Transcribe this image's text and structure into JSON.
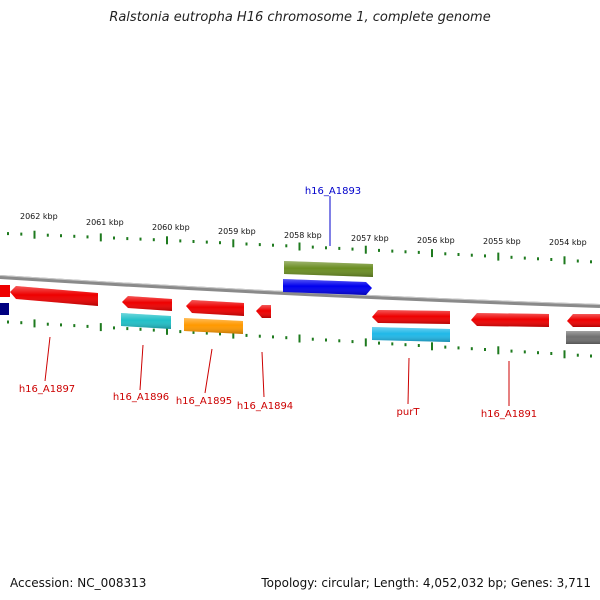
{
  "title": "Ralstonia eutropha H16 chromosome 1, complete genome",
  "accession": "Accession: NC_008313",
  "topology_info": "Topology: circular; Length: 4,052,032 bp; Genes: 3,711",
  "colors": {
    "backbone": "#8a8a8a",
    "tick": "#1e7a1e",
    "label_red": "#cc0000",
    "label_blue": "#0000cc"
  },
  "ruler": {
    "labels": [
      "2062 kbp",
      "2061 kbp",
      "2060 kbp",
      "2059 kbp",
      "2058 kbp",
      "2057 kbp",
      "2056 kbp",
      "2055 kbp",
      "2054 kbp"
    ]
  },
  "gene_labels": [
    {
      "id": "h16_A1897",
      "text": "h16_A1897",
      "color": "#cc0000"
    },
    {
      "id": "h16_A1896",
      "text": "h16_A1896",
      "color": "#cc0000"
    },
    {
      "id": "h16_A1895",
      "text": "h16_A1895",
      "color": "#cc0000"
    },
    {
      "id": "h16_A1894",
      "text": "h16_A1894",
      "color": "#cc0000"
    },
    {
      "id": "purT",
      "text": "purT",
      "color": "#cc0000"
    },
    {
      "id": "h16_A1891",
      "text": "h16_A1891",
      "color": "#cc0000"
    },
    {
      "id": "h16_A1893",
      "text": "h16_A1893",
      "color": "#0000cc"
    }
  ],
  "features": [
    {
      "name": "gene-red-1",
      "color": "#ee0000",
      "strand": "minus"
    },
    {
      "name": "gene-red-2",
      "color": "#ee0000",
      "strand": "minus"
    },
    {
      "name": "gene-red-3",
      "color": "#ee0000",
      "strand": "minus"
    },
    {
      "name": "gene-red-4",
      "color": "#ee0000",
      "strand": "minus"
    },
    {
      "name": "gene-red-5",
      "color": "#ee0000",
      "strand": "minus"
    },
    {
      "name": "gene-red-6",
      "color": "#ee0000",
      "strand": "minus"
    },
    {
      "name": "gene-red-7",
      "color": "#ee0000",
      "strand": "minus"
    },
    {
      "name": "gene-red-8",
      "color": "#ee0000",
      "strand": "minus"
    },
    {
      "name": "gene-blue",
      "color": "#0000ee",
      "strand": "plus"
    },
    {
      "name": "gene-olive",
      "color": "#6b8e23",
      "strand": "plus"
    },
    {
      "name": "gene-cyan-1",
      "color": "#20c0c8",
      "strand": "plus"
    },
    {
      "name": "gene-orange",
      "color": "#ff9900",
      "strand": "plus"
    },
    {
      "name": "gene-cyan-2",
      "color": "#20b8e8",
      "strand": "plus"
    },
    {
      "name": "gene-navy",
      "color": "#000080",
      "strand": "plus"
    },
    {
      "name": "gene-gray",
      "color": "#707070",
      "strand": "plus"
    }
  ]
}
